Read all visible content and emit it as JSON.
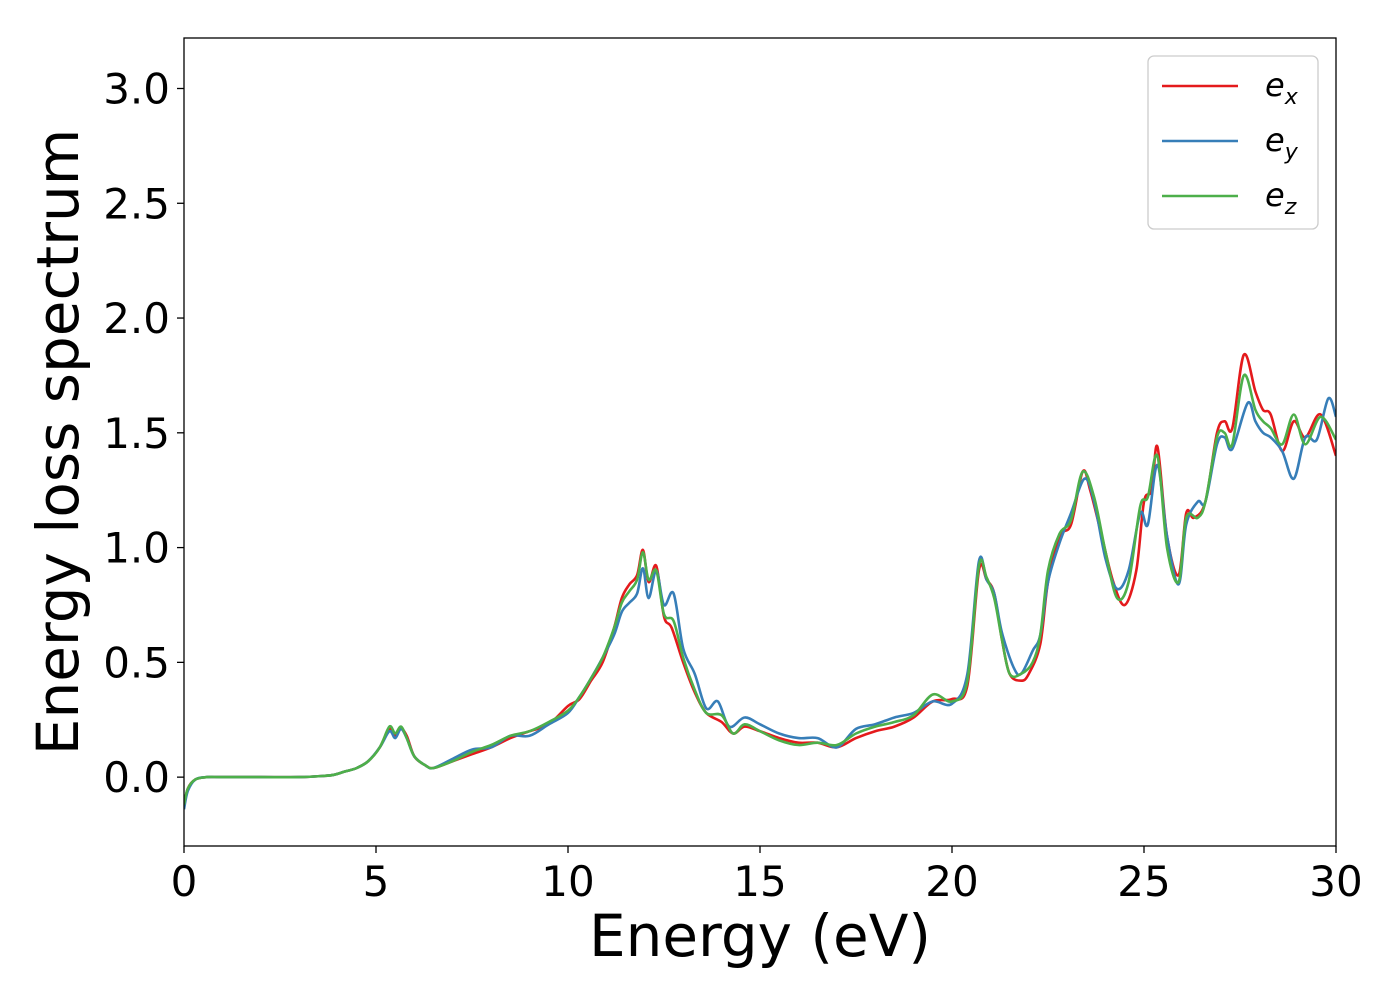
{
  "chart_data": {
    "type": "line",
    "title": "",
    "xlabel": "Energy (eV)",
    "ylabel": "Energy loss spectrum",
    "xlim": [
      0,
      30
    ],
    "ylim": [
      -0.3,
      3.22
    ],
    "xticks": [
      0,
      5,
      10,
      15,
      20,
      25,
      30
    ],
    "yticks": [
      0.0,
      0.5,
      1.0,
      1.5,
      2.0,
      2.5,
      3.0
    ],
    "xtick_labels": [
      "0",
      "5",
      "10",
      "15",
      "20",
      "25",
      "30"
    ],
    "ytick_labels": [
      "0.0",
      "0.5",
      "1.0",
      "1.5",
      "2.0",
      "2.5",
      "3.0"
    ],
    "grid": false,
    "legend_position": "top-right",
    "series": [
      {
        "name": "e_x",
        "legend_base": "e",
        "legend_sub": "x",
        "color": "#e41a1c",
        "points": [
          [
            0,
            -0.13
          ],
          [
            0.1,
            -0.05
          ],
          [
            0.3,
            -0.01
          ],
          [
            0.6,
            0.0
          ],
          [
            1,
            0.0
          ],
          [
            2,
            0.0
          ],
          [
            3,
            0.0
          ],
          [
            3.6,
            0.005
          ],
          [
            3.9,
            0.01
          ],
          [
            4.2,
            0.025
          ],
          [
            4.5,
            0.04
          ],
          [
            4.8,
            0.07
          ],
          [
            5.1,
            0.13
          ],
          [
            5.35,
            0.21
          ],
          [
            5.5,
            0.18
          ],
          [
            5.65,
            0.21
          ],
          [
            5.8,
            0.18
          ],
          [
            6.0,
            0.09
          ],
          [
            6.3,
            0.05
          ],
          [
            6.5,
            0.04
          ],
          [
            7.0,
            0.07
          ],
          [
            7.5,
            0.1
          ],
          [
            8.0,
            0.13
          ],
          [
            8.5,
            0.17
          ],
          [
            9.0,
            0.2
          ],
          [
            9.5,
            0.23
          ],
          [
            10.0,
            0.31
          ],
          [
            10.3,
            0.34
          ],
          [
            10.6,
            0.42
          ],
          [
            10.9,
            0.5
          ],
          [
            11.2,
            0.65
          ],
          [
            11.4,
            0.78
          ],
          [
            11.6,
            0.84
          ],
          [
            11.8,
            0.88
          ],
          [
            11.95,
            0.99
          ],
          [
            12.1,
            0.85
          ],
          [
            12.3,
            0.92
          ],
          [
            12.5,
            0.7
          ],
          [
            12.7,
            0.65
          ],
          [
            13.0,
            0.5
          ],
          [
            13.3,
            0.37
          ],
          [
            13.6,
            0.28
          ],
          [
            14.0,
            0.24
          ],
          [
            14.3,
            0.19
          ],
          [
            14.6,
            0.22
          ],
          [
            15.0,
            0.2
          ],
          [
            15.5,
            0.17
          ],
          [
            16.0,
            0.15
          ],
          [
            16.5,
            0.15
          ],
          [
            17.0,
            0.13
          ],
          [
            17.5,
            0.17
          ],
          [
            18.0,
            0.2
          ],
          [
            18.5,
            0.22
          ],
          [
            19.0,
            0.26
          ],
          [
            19.5,
            0.33
          ],
          [
            20.0,
            0.34
          ],
          [
            20.4,
            0.4
          ],
          [
            20.7,
            0.9
          ],
          [
            20.9,
            0.86
          ],
          [
            21.1,
            0.8
          ],
          [
            21.3,
            0.6
          ],
          [
            21.5,
            0.45
          ],
          [
            21.8,
            0.42
          ],
          [
            22.0,
            0.45
          ],
          [
            22.3,
            0.58
          ],
          [
            22.5,
            0.85
          ],
          [
            22.8,
            1.05
          ],
          [
            23.1,
            1.1
          ],
          [
            23.4,
            1.33
          ],
          [
            23.6,
            1.25
          ],
          [
            23.9,
            1.05
          ],
          [
            24.2,
            0.85
          ],
          [
            24.5,
            0.75
          ],
          [
            24.8,
            0.9
          ],
          [
            25.0,
            1.2
          ],
          [
            25.2,
            1.25
          ],
          [
            25.35,
            1.44
          ],
          [
            25.6,
            1.05
          ],
          [
            25.9,
            0.88
          ],
          [
            26.1,
            1.15
          ],
          [
            26.3,
            1.13
          ],
          [
            26.6,
            1.2
          ],
          [
            26.9,
            1.5
          ],
          [
            27.1,
            1.55
          ],
          [
            27.3,
            1.52
          ],
          [
            27.6,
            1.84
          ],
          [
            27.9,
            1.68
          ],
          [
            28.1,
            1.6
          ],
          [
            28.3,
            1.58
          ],
          [
            28.6,
            1.42
          ],
          [
            28.9,
            1.55
          ],
          [
            29.2,
            1.48
          ],
          [
            29.6,
            1.58
          ],
          [
            30.0,
            1.4
          ]
        ]
      },
      {
        "name": "e_y",
        "legend_base": "e",
        "legend_sub": "y",
        "color": "#377eb8",
        "points": [
          [
            0,
            -0.14
          ],
          [
            0.1,
            -0.06
          ],
          [
            0.3,
            -0.01
          ],
          [
            0.6,
            0.0
          ],
          [
            1,
            0.0
          ],
          [
            2,
            0.0
          ],
          [
            3,
            0.0
          ],
          [
            3.6,
            0.005
          ],
          [
            3.9,
            0.01
          ],
          [
            4.2,
            0.025
          ],
          [
            4.5,
            0.04
          ],
          [
            4.8,
            0.07
          ],
          [
            5.1,
            0.13
          ],
          [
            5.35,
            0.2
          ],
          [
            5.5,
            0.17
          ],
          [
            5.65,
            0.21
          ],
          [
            5.8,
            0.17
          ],
          [
            6.0,
            0.09
          ],
          [
            6.3,
            0.05
          ],
          [
            6.5,
            0.04
          ],
          [
            7.0,
            0.08
          ],
          [
            7.5,
            0.12
          ],
          [
            8.0,
            0.13
          ],
          [
            8.5,
            0.18
          ],
          [
            9.0,
            0.18
          ],
          [
            9.5,
            0.23
          ],
          [
            10.0,
            0.28
          ],
          [
            10.3,
            0.35
          ],
          [
            10.6,
            0.43
          ],
          [
            10.9,
            0.52
          ],
          [
            11.2,
            0.62
          ],
          [
            11.4,
            0.72
          ],
          [
            11.6,
            0.76
          ],
          [
            11.8,
            0.8
          ],
          [
            11.95,
            0.91
          ],
          [
            12.1,
            0.78
          ],
          [
            12.3,
            0.9
          ],
          [
            12.5,
            0.75
          ],
          [
            12.75,
            0.8
          ],
          [
            13.0,
            0.56
          ],
          [
            13.3,
            0.45
          ],
          [
            13.6,
            0.3
          ],
          [
            13.9,
            0.33
          ],
          [
            14.2,
            0.22
          ],
          [
            14.6,
            0.26
          ],
          [
            15.0,
            0.23
          ],
          [
            15.5,
            0.19
          ],
          [
            16.0,
            0.17
          ],
          [
            16.5,
            0.17
          ],
          [
            17.0,
            0.13
          ],
          [
            17.5,
            0.21
          ],
          [
            18.0,
            0.23
          ],
          [
            18.5,
            0.26
          ],
          [
            19.0,
            0.28
          ],
          [
            19.5,
            0.33
          ],
          [
            20.0,
            0.32
          ],
          [
            20.4,
            0.45
          ],
          [
            20.7,
            0.94
          ],
          [
            20.9,
            0.86
          ],
          [
            21.1,
            0.8
          ],
          [
            21.3,
            0.63
          ],
          [
            21.6,
            0.48
          ],
          [
            21.8,
            0.45
          ],
          [
            22.1,
            0.55
          ],
          [
            22.3,
            0.62
          ],
          [
            22.5,
            0.85
          ],
          [
            22.8,
            1.02
          ],
          [
            23.1,
            1.15
          ],
          [
            23.45,
            1.3
          ],
          [
            23.7,
            1.2
          ],
          [
            24.0,
            0.95
          ],
          [
            24.3,
            0.82
          ],
          [
            24.6,
            0.9
          ],
          [
            24.9,
            1.15
          ],
          [
            25.1,
            1.1
          ],
          [
            25.35,
            1.36
          ],
          [
            25.6,
            1.05
          ],
          [
            25.9,
            0.84
          ],
          [
            26.1,
            1.1
          ],
          [
            26.4,
            1.2
          ],
          [
            26.6,
            1.2
          ],
          [
            26.9,
            1.45
          ],
          [
            27.1,
            1.48
          ],
          [
            27.3,
            1.43
          ],
          [
            27.7,
            1.63
          ],
          [
            27.9,
            1.55
          ],
          [
            28.1,
            1.5
          ],
          [
            28.3,
            1.48
          ],
          [
            28.6,
            1.42
          ],
          [
            28.9,
            1.3
          ],
          [
            29.2,
            1.48
          ],
          [
            29.5,
            1.47
          ],
          [
            29.8,
            1.65
          ],
          [
            30.0,
            1.57
          ]
        ]
      },
      {
        "name": "e_z",
        "legend_base": "e",
        "legend_sub": "z",
        "color": "#4daf4a",
        "points": [
          [
            0,
            -0.12
          ],
          [
            0.1,
            -0.05
          ],
          [
            0.3,
            -0.01
          ],
          [
            0.6,
            0.0
          ],
          [
            1,
            0.0
          ],
          [
            2,
            0.0
          ],
          [
            3,
            0.0
          ],
          [
            3.6,
            0.005
          ],
          [
            3.9,
            0.01
          ],
          [
            4.2,
            0.025
          ],
          [
            4.5,
            0.04
          ],
          [
            4.8,
            0.07
          ],
          [
            5.1,
            0.13
          ],
          [
            5.35,
            0.22
          ],
          [
            5.5,
            0.19
          ],
          [
            5.65,
            0.22
          ],
          [
            5.8,
            0.17
          ],
          [
            6.0,
            0.09
          ],
          [
            6.3,
            0.05
          ],
          [
            6.5,
            0.04
          ],
          [
            7.0,
            0.07
          ],
          [
            7.5,
            0.11
          ],
          [
            8.0,
            0.14
          ],
          [
            8.5,
            0.18
          ],
          [
            9.0,
            0.2
          ],
          [
            9.5,
            0.24
          ],
          [
            10.0,
            0.29
          ],
          [
            10.3,
            0.35
          ],
          [
            10.6,
            0.43
          ],
          [
            10.9,
            0.52
          ],
          [
            11.2,
            0.65
          ],
          [
            11.4,
            0.76
          ],
          [
            11.6,
            0.81
          ],
          [
            11.8,
            0.86
          ],
          [
            11.95,
            0.98
          ],
          [
            12.1,
            0.86
          ],
          [
            12.3,
            0.9
          ],
          [
            12.5,
            0.71
          ],
          [
            12.75,
            0.68
          ],
          [
            13.0,
            0.52
          ],
          [
            13.3,
            0.38
          ],
          [
            13.6,
            0.28
          ],
          [
            14.0,
            0.27
          ],
          [
            14.3,
            0.19
          ],
          [
            14.6,
            0.23
          ],
          [
            15.0,
            0.2
          ],
          [
            15.5,
            0.16
          ],
          [
            16.0,
            0.14
          ],
          [
            16.5,
            0.15
          ],
          [
            17.0,
            0.14
          ],
          [
            17.5,
            0.19
          ],
          [
            18.0,
            0.22
          ],
          [
            18.5,
            0.24
          ],
          [
            19.0,
            0.27
          ],
          [
            19.5,
            0.36
          ],
          [
            20.0,
            0.33
          ],
          [
            20.4,
            0.42
          ],
          [
            20.7,
            0.92
          ],
          [
            20.9,
            0.87
          ],
          [
            21.1,
            0.78
          ],
          [
            21.3,
            0.6
          ],
          [
            21.5,
            0.45
          ],
          [
            21.8,
            0.45
          ],
          [
            22.1,
            0.5
          ],
          [
            22.3,
            0.62
          ],
          [
            22.5,
            0.9
          ],
          [
            22.8,
            1.06
          ],
          [
            23.1,
            1.12
          ],
          [
            23.4,
            1.33
          ],
          [
            23.7,
            1.22
          ],
          [
            24.0,
            0.98
          ],
          [
            24.3,
            0.78
          ],
          [
            24.6,
            0.85
          ],
          [
            24.9,
            1.18
          ],
          [
            25.1,
            1.22
          ],
          [
            25.35,
            1.4
          ],
          [
            25.6,
            1.0
          ],
          [
            25.9,
            0.85
          ],
          [
            26.1,
            1.13
          ],
          [
            26.4,
            1.13
          ],
          [
            26.6,
            1.2
          ],
          [
            26.9,
            1.48
          ],
          [
            27.1,
            1.5
          ],
          [
            27.3,
            1.45
          ],
          [
            27.6,
            1.75
          ],
          [
            27.9,
            1.6
          ],
          [
            28.1,
            1.55
          ],
          [
            28.3,
            1.52
          ],
          [
            28.6,
            1.45
          ],
          [
            28.9,
            1.58
          ],
          [
            29.2,
            1.45
          ],
          [
            29.6,
            1.57
          ],
          [
            30.0,
            1.47
          ]
        ]
      }
    ]
  }
}
